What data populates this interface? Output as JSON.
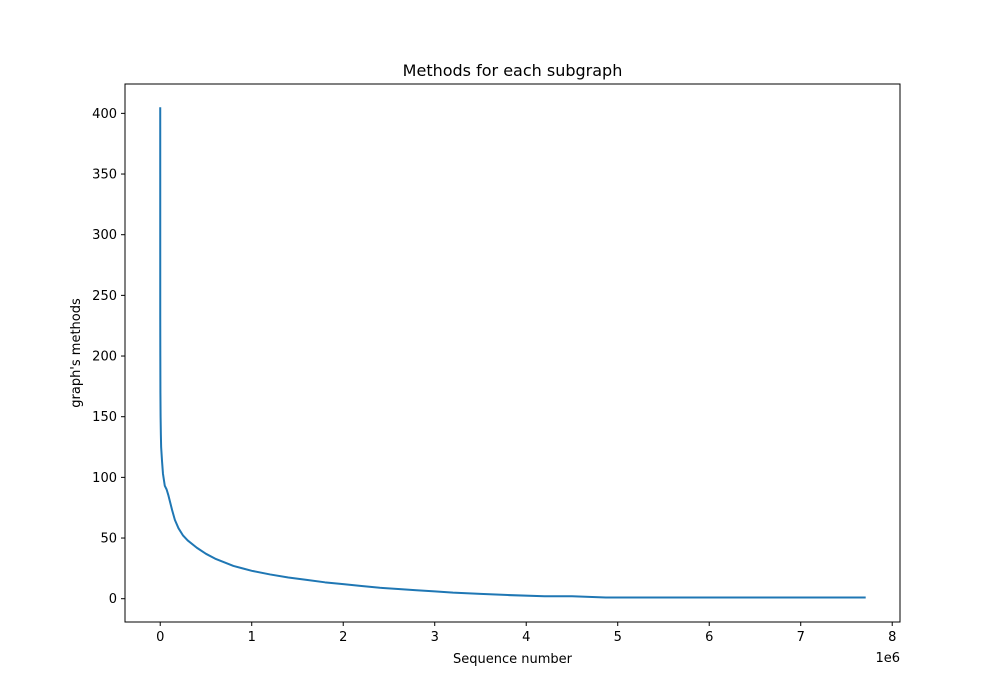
{
  "chart_data": {
    "type": "line",
    "title": "Methods for each subgraph",
    "xlabel": "Sequence number",
    "ylabel": "graph's methods",
    "x_offset_label": "1e6",
    "xlim": [
      -0.385,
      8.085
    ],
    "ylim": [
      -19.2,
      424.2
    ],
    "xticks": [
      0,
      1,
      2,
      3,
      4,
      5,
      6,
      7,
      8
    ],
    "yticks": [
      0,
      50,
      100,
      150,
      200,
      250,
      300,
      350,
      400
    ],
    "grid": false,
    "line_color": "#1f77b4",
    "series": [
      {
        "x": [
          0,
          0.0001,
          0.0003,
          0.001,
          0.002,
          0.004,
          0.007,
          0.01,
          0.02,
          0.03,
          0.05,
          0.07,
          0.09,
          0.11,
          0.13,
          0.16,
          0.2,
          0.25,
          0.3,
          0.4,
          0.5,
          0.6,
          0.7,
          0.8,
          0.9,
          1.0,
          1.2,
          1.4,
          1.6,
          1.8,
          2.0,
          2.2,
          2.4,
          2.6,
          2.8,
          3.0,
          3.2,
          3.5,
          3.8,
          4.2,
          4.5,
          4.87,
          5.0,
          5.5,
          6.0,
          6.5,
          7.0,
          7.5,
          7.71
        ],
        "y": [
          405,
          350,
          230,
          200,
          170,
          150,
          135,
          125,
          113,
          103,
          93,
          90,
          85,
          79,
          73,
          65,
          58,
          52,
          48,
          42,
          37,
          33,
          30,
          27,
          25,
          23,
          20,
          17.5,
          15.5,
          13.5,
          12,
          10.5,
          9,
          8,
          7,
          6,
          5,
          4,
          3,
          2,
          2,
          1,
          1,
          1,
          1,
          1,
          1,
          1,
          1
        ]
      }
    ]
  }
}
